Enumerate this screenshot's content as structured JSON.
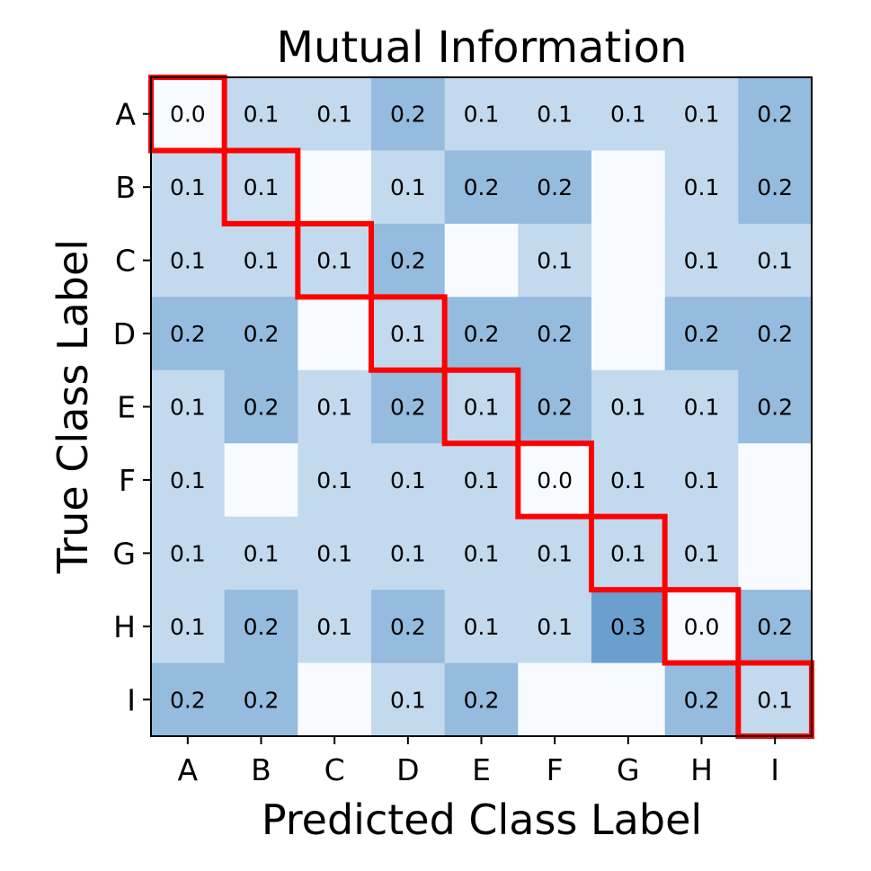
{
  "chart_data": {
    "type": "heatmap",
    "title": "Mutual Information",
    "xlabel": "Predicted Class Label",
    "ylabel": "True Class Label",
    "x_categories": [
      "A",
      "B",
      "C",
      "D",
      "E",
      "F",
      "G",
      "H",
      "I"
    ],
    "y_categories": [
      "A",
      "B",
      "C",
      "D",
      "E",
      "F",
      "G",
      "H",
      "I"
    ],
    "values": [
      [
        0.0,
        0.1,
        0.1,
        0.2,
        0.1,
        0.1,
        0.1,
        0.1,
        0.2
      ],
      [
        0.1,
        0.1,
        null,
        0.1,
        0.2,
        0.2,
        null,
        0.1,
        0.2
      ],
      [
        0.1,
        0.1,
        0.1,
        0.2,
        null,
        0.1,
        null,
        0.1,
        0.1
      ],
      [
        0.2,
        0.2,
        null,
        0.1,
        0.2,
        0.2,
        null,
        0.2,
        0.2
      ],
      [
        0.1,
        0.2,
        0.1,
        0.2,
        0.1,
        0.2,
        0.1,
        0.1,
        0.2
      ],
      [
        0.1,
        null,
        0.1,
        0.1,
        0.1,
        0.0,
        0.1,
        0.1,
        null
      ],
      [
        0.1,
        0.1,
        0.1,
        0.1,
        0.1,
        0.1,
        0.1,
        0.1,
        null
      ],
      [
        0.1,
        0.2,
        0.1,
        0.2,
        0.1,
        0.1,
        0.3,
        0.0,
        0.2
      ],
      [
        0.2,
        0.2,
        null,
        0.1,
        0.2,
        null,
        null,
        0.2,
        0.1
      ]
    ],
    "colormap": "Blues",
    "color_min": "#f7fbff",
    "color_max": "#6a9fd0",
    "diagonal_highlight_color": "#ff0000",
    "grid": false
  }
}
